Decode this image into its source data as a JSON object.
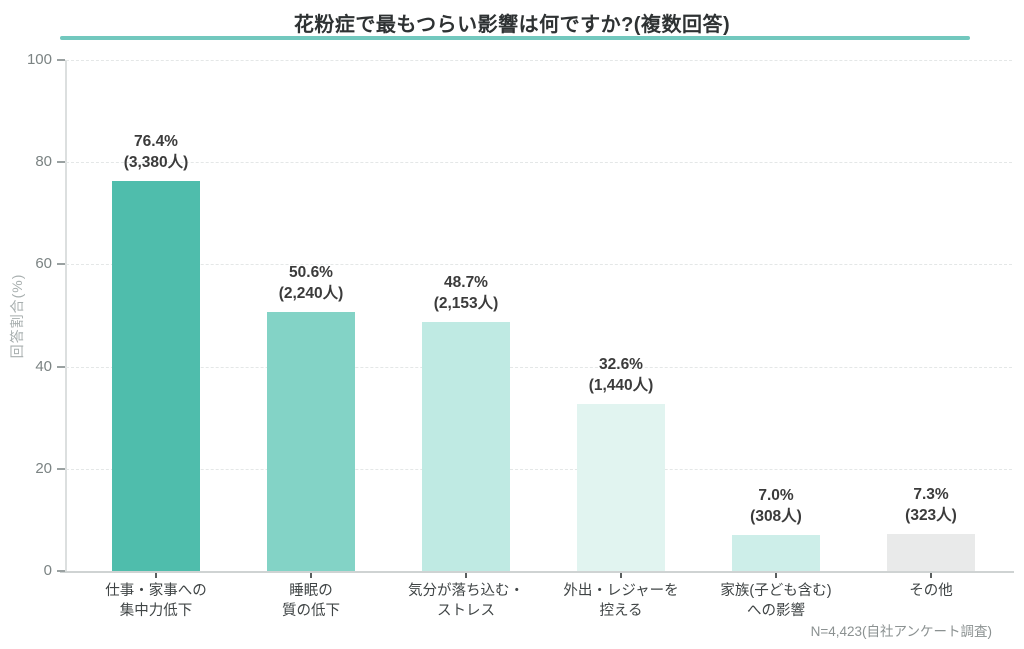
{
  "title": "花粉症で最もつらい影響は何ですか?(複数回答)",
  "footer_note": "N=4,423(自社アンケート調査)",
  "colors": {
    "accent_underline": "#72c8be",
    "axis_line": "#dcdfdf",
    "gridline": "#e4e7e7",
    "tick_label": "#7b8383",
    "value_label": "#3b3b3b",
    "category_label": "#404546",
    "axis_title": "#a8afaf",
    "footer": "#8b9191"
  },
  "chart_data": {
    "type": "bar",
    "title": "花粉症で最もつらい影響は何ですか?(複数回答)",
    "xlabel": "",
    "ylabel": "回答割合(%)",
    "ylim": [
      0,
      100
    ],
    "yticks": [
      0,
      20,
      40,
      60,
      80,
      100
    ],
    "grid": "horizontal-dashed",
    "legend": "none",
    "categories": [
      "仕事・家事への集中力低下",
      "睡眠の質の低下",
      "気分が落ち込む・ストレス",
      "外出・レジャーを控える",
      "家族(子ども含む)への影響",
      "その他"
    ],
    "category_lines": [
      "仕事・家事への\n集中力低下",
      "睡眠の\n質の低下",
      "気分が落ち込む・\nストレス",
      "外出・レジャーを\n控える",
      "家族(子ども含む)\nへの影響",
      "その他"
    ],
    "values": [
      76.4,
      50.6,
      48.7,
      32.6,
      7.0,
      7.3
    ],
    "counts": [
      3380,
      2240,
      2153,
      1440,
      308,
      323
    ],
    "bar_labels": [
      "76.4%\n(3,380人)",
      "50.6%\n(2,240人)",
      "48.7%\n(2,153人)",
      "32.6%\n(1,440人)",
      "7.0%\n(308人)",
      "7.3%\n(323人)"
    ],
    "bar_colors": [
      "#4fbdac",
      "#83d3c6",
      "#bfeae3",
      "#e1f4f0",
      "#cdeee9",
      "#e9eaea"
    ],
    "sample_note": "N=4,423(自社アンケート調査)"
  }
}
